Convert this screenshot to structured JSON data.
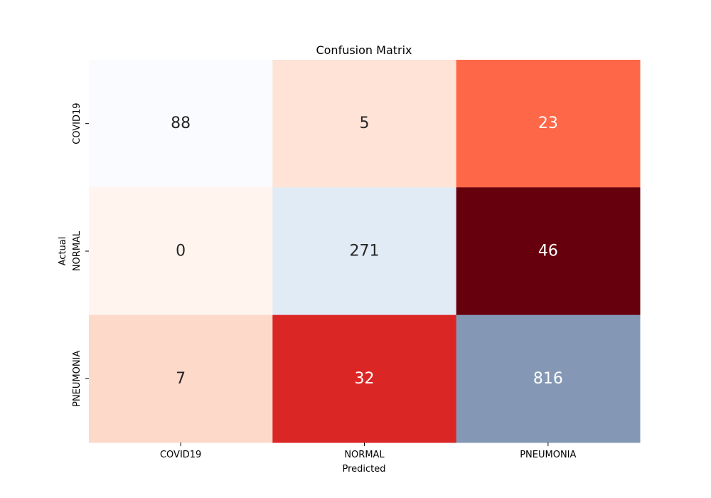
{
  "chart_data": {
    "type": "heatmap",
    "title": "Confusion Matrix",
    "xlabel": "Predicted",
    "ylabel": "Actual",
    "x_categories": [
      "COVID19",
      "NORMAL",
      "PNEUMONIA"
    ],
    "y_categories": [
      "COVID19",
      "NORMAL",
      "PNEUMONIA"
    ],
    "values": [
      [
        88,
        5,
        23
      ],
      [
        0,
        271,
        46
      ],
      [
        7,
        32,
        816
      ]
    ],
    "cell_colors": [
      [
        "#f9fbfe",
        "#fee3d6",
        "#fe6849"
      ],
      [
        "#fff4ee",
        "#e1ebf5",
        "#67000d"
      ],
      [
        "#fdd9c9",
        "#db2626",
        "#8498b5"
      ]
    ],
    "cell_text_colors": [
      [
        "#262626",
        "#262626",
        "#ffffff"
      ],
      [
        "#262626",
        "#262626",
        "#ffffff"
      ],
      [
        "#262626",
        "#ffffff",
        "#ffffff"
      ]
    ],
    "colorbar": false
  }
}
